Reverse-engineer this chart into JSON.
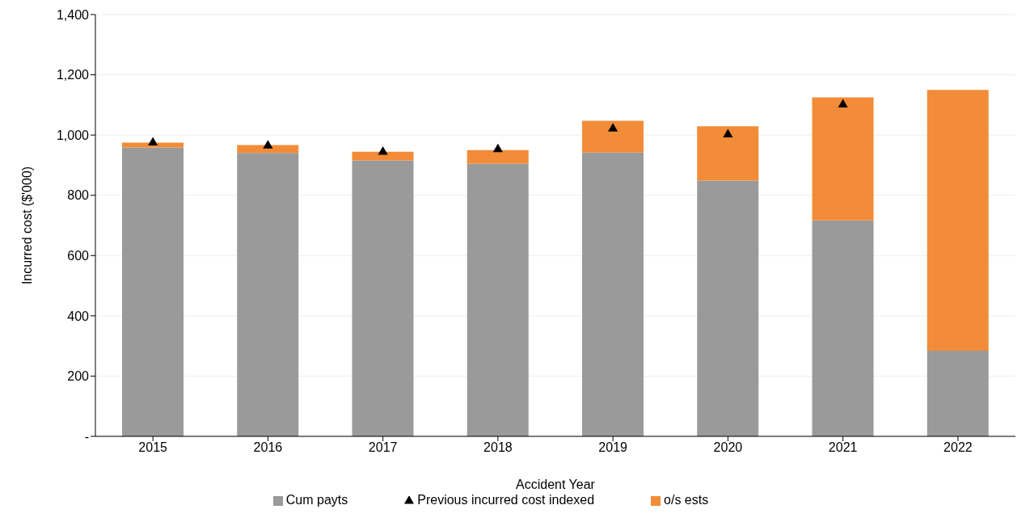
{
  "chart_data": {
    "type": "bar",
    "stacked": true,
    "xlabel": "Accident Year",
    "ylabel": "Incurred cost ($'000)",
    "categories": [
      "2015",
      "2016",
      "2017",
      "2018",
      "2019",
      "2020",
      "2021",
      "2022"
    ],
    "series": [
      {
        "name": "Cum payts",
        "color": "#9a9a9a",
        "values": [
          959,
          941,
          916,
          905,
          942,
          849,
          717,
          284
        ]
      },
      {
        "name": "o/s ests",
        "color": "#f28c38",
        "values": [
          16,
          26,
          29,
          45,
          105,
          180,
          408,
          866
        ]
      },
      {
        "name": "Previous  incurred cost indexed",
        "type": "scatter",
        "marker": "triangle",
        "color": "#000000",
        "values": [
          975,
          965,
          944,
          953,
          1021,
          1002,
          1101,
          null
        ]
      }
    ],
    "ylim": [
      0,
      1400
    ],
    "yticks": [
      {
        "value": 0,
        "label": "-"
      },
      200,
      400,
      600,
      800,
      {
        "value": 1000,
        "label": "1,000"
      },
      {
        "value": 1200,
        "label": "1,200"
      },
      {
        "value": 1400,
        "label": "1,400"
      }
    ],
    "grid": "y",
    "legend": "bottom"
  }
}
